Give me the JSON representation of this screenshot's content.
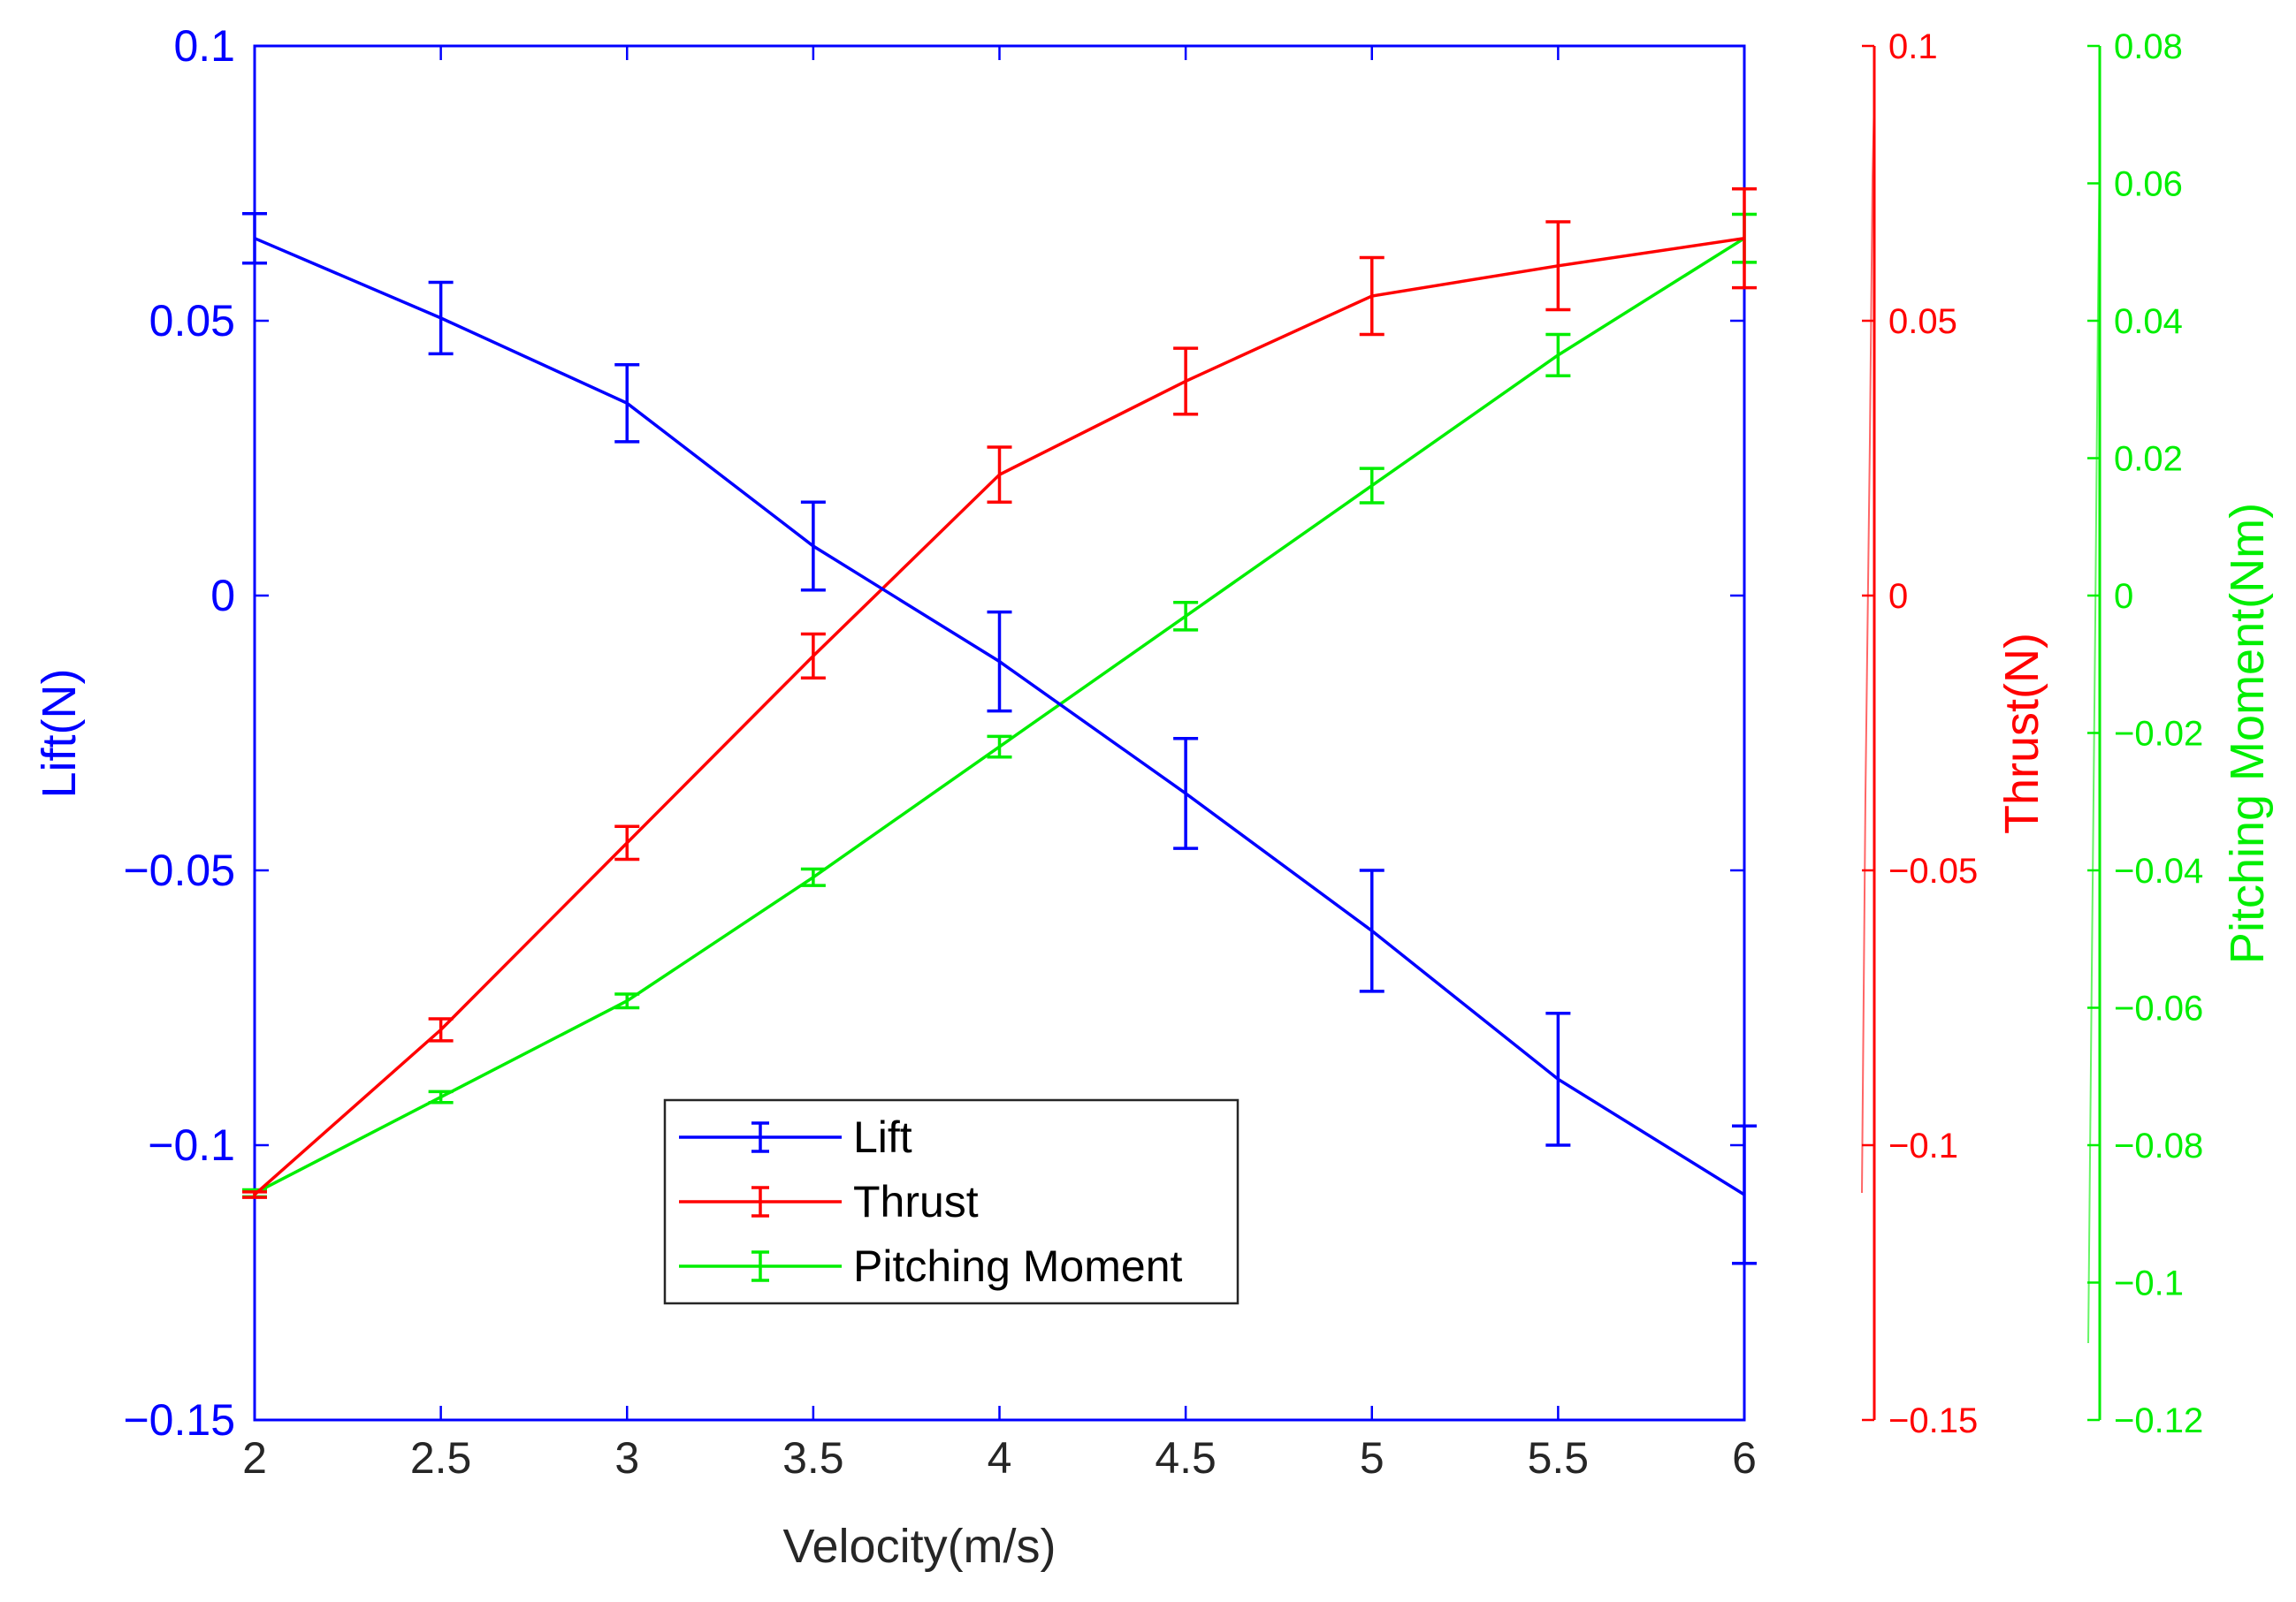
{
  "chart_data": {
    "type": "line",
    "xlabel": "Velocity(m/s)",
    "x": [
      2,
      2.5,
      3,
      3.5,
      4,
      4.5,
      5,
      5.5,
      6
    ],
    "x_ticks": [
      "2",
      "2.5",
      "3",
      "3.5",
      "4",
      "4.5",
      "5",
      "5.5",
      "6"
    ],
    "xlim": [
      2,
      6
    ],
    "axes": {
      "lift": {
        "label": "Lift(N)",
        "color": "#0000ff",
        "side": "left",
        "ylim": [
          -0.15,
          0.1
        ],
        "ticks": [
          0.1,
          0.05,
          0,
          -0.05,
          -0.1,
          -0.15
        ],
        "tick_labels": [
          "0.1",
          "0.05",
          "0",
          "−0.05",
          "−0.1",
          "−0.15"
        ]
      },
      "thrust": {
        "label": "Thrust(N)",
        "color": "#ff0000",
        "side": "right",
        "ylim": [
          -0.15,
          0.1
        ],
        "ticks": [
          0.1,
          0.05,
          0,
          -0.05,
          -0.1,
          -0.15
        ],
        "tick_labels": [
          "0.1",
          "0.05",
          "0",
          "−0.05",
          "−0.1",
          "−0.15"
        ]
      },
      "moment": {
        "label": "Pitching Moment(Nm)",
        "color": "#00ee00",
        "side": "right-outer",
        "ylim": [
          -0.12,
          0.08
        ],
        "ticks": [
          0.08,
          0.06,
          0.04,
          0.02,
          0,
          -0.02,
          -0.04,
          -0.06,
          -0.08,
          -0.1,
          -0.12
        ],
        "tick_labels": [
          "0.08",
          "0.06",
          "0.04",
          "0.02",
          "0",
          "−0.02",
          "−0.04",
          "−0.06",
          "−0.08",
          "−0.1",
          "−0.12"
        ]
      }
    },
    "series": [
      {
        "name": "Lift",
        "axis": "lift",
        "color": "#0000ff",
        "values": [
          0.065,
          0.0505,
          0.035,
          0.009,
          -0.012,
          -0.036,
          -0.061,
          -0.088,
          -0.109
        ],
        "errors": [
          0.0045,
          0.0065,
          0.007,
          0.008,
          0.009,
          0.01,
          0.011,
          0.012,
          0.0125
        ]
      },
      {
        "name": "Thrust",
        "axis": "thrust",
        "color": "#ff0000",
        "values": [
          -0.109,
          -0.079,
          -0.045,
          -0.011,
          0.022,
          0.039,
          0.0545,
          0.06,
          0.065
        ],
        "errors": [
          0.0005,
          0.002,
          0.003,
          0.004,
          0.005,
          0.006,
          0.007,
          0.008,
          0.009
        ]
      },
      {
        "name": "Pitching Moment",
        "axis": "moment",
        "color": "#00ee00",
        "values": [
          -0.087,
          -0.073,
          -0.059,
          -0.041,
          -0.022,
          -0.003,
          0.016,
          0.035,
          0.052
        ],
        "errors": [
          0.0005,
          0.0008,
          0.001,
          0.0012,
          0.0015,
          0.002,
          0.0025,
          0.003,
          0.0035
        ]
      }
    ],
    "legend": {
      "position": "lower-center",
      "entries": [
        "Lift",
        "Thrust",
        "Pitching Moment"
      ]
    }
  }
}
